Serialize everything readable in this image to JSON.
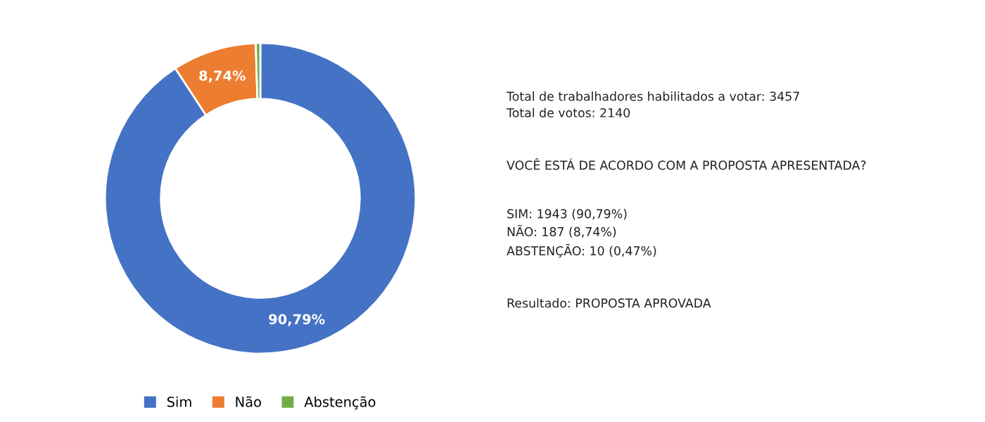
{
  "chart_data": {
    "type": "donut",
    "categories": [
      "Sim",
      "Não",
      "Abstenção"
    ],
    "values": [
      90.79,
      8.74,
      0.47
    ],
    "colors": [
      "#4472c4",
      "#ed7d31",
      "#70ad47"
    ],
    "value_labels": [
      "90,79%",
      "8,74%",
      null
    ],
    "legend": "bottom",
    "annotations": [
      "Total de trabalhadores habilitados a votar: 3457\nTotal de votos: 2140",
      "VOCÊ ESTÁ DE ACORDO COM A PROPOSTA APRESENTADA?",
      "SIM: 1943 (90,79%)\nNÃO: 187 (8,74%)\nABSTENÇÃO: 10 (0,47%)",
      "Resultado: PROPOSTA APROVADA"
    ]
  }
}
